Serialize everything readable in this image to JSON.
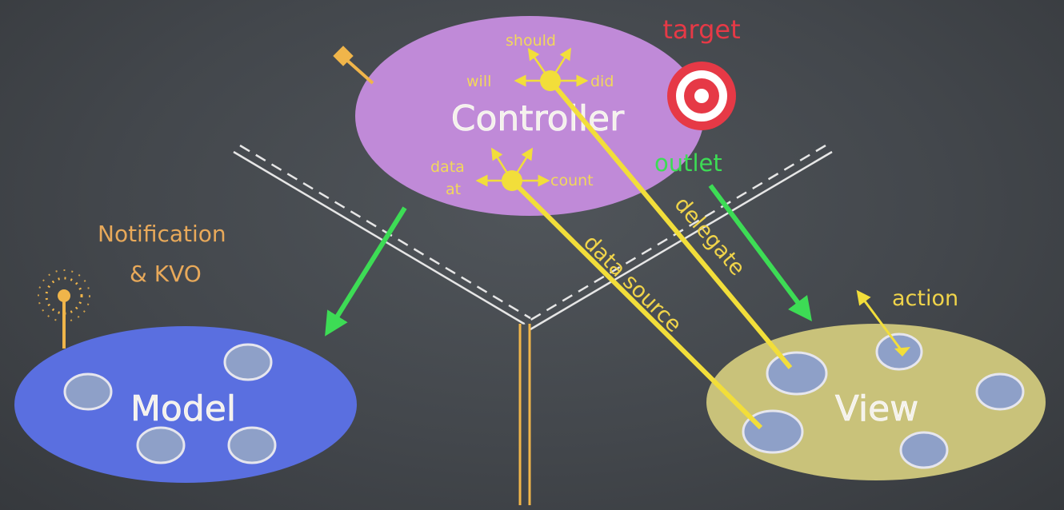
{
  "diagram": {
    "controller": {
      "label": "Controller",
      "delegate_hooks": {
        "should": "should",
        "will": "will",
        "did": "did"
      },
      "data_hooks": {
        "data_at": [
          "data",
          "at"
        ],
        "count": "count"
      }
    },
    "model": {
      "label": "Model"
    },
    "view": {
      "label": "View"
    },
    "labels": {
      "target": "target",
      "outlet": "outlet",
      "delegate": "delegate",
      "data_source": "data source",
      "action": "action",
      "notification": [
        "Notification",
        "& KVO"
      ]
    },
    "colors": {
      "background": "#3f4347",
      "controller": "#c08ad8",
      "model": "#5a6fe0",
      "view": "#c9c27a",
      "arrow_green": "#3ddc55",
      "yellow": "#f2de3a",
      "target_red": "#e63946",
      "orange": "#e8a95a"
    }
  }
}
